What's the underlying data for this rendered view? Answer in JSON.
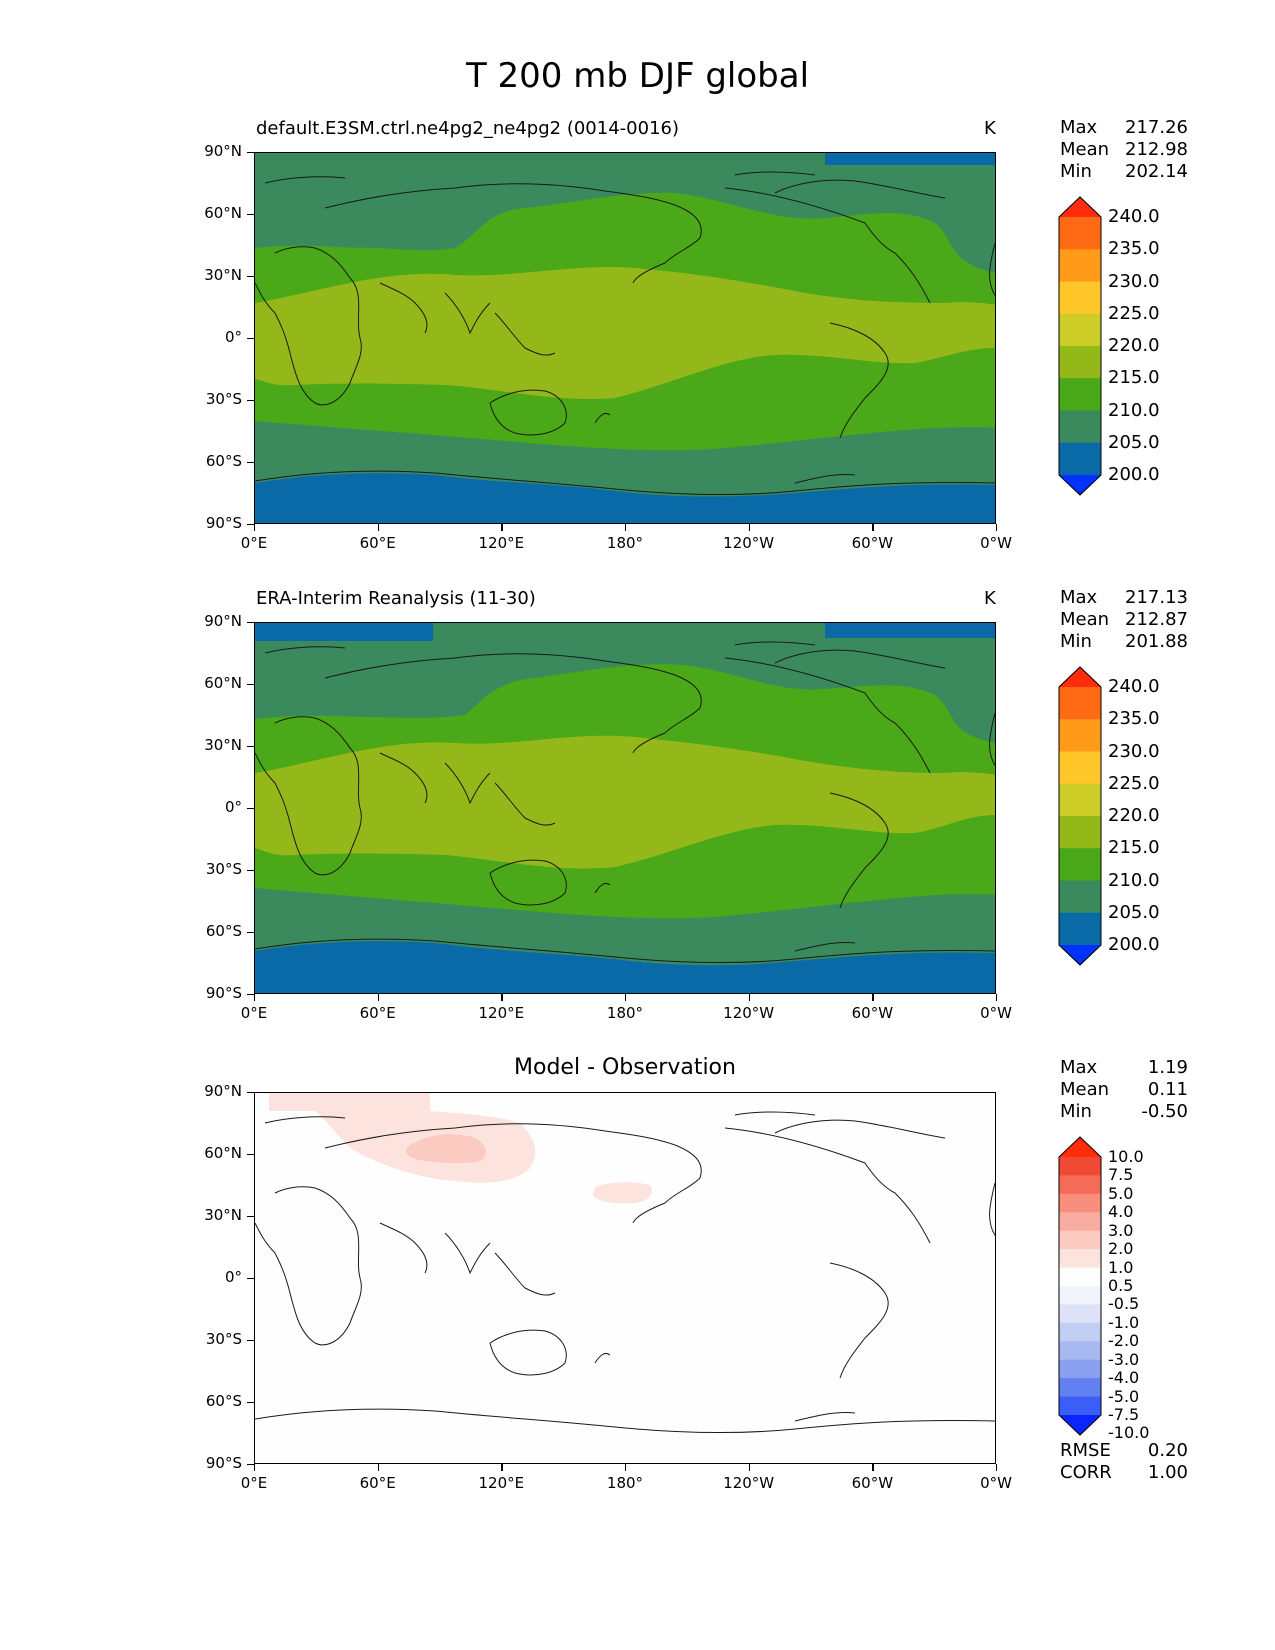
{
  "figure": {
    "title": "T 200 mb DJF global"
  },
  "colors": {
    "abs_levels": [
      "#0033ff",
      "#0a6aa8",
      "#3a8a5e",
      "#4aa819",
      "#94b819",
      "#cccd27",
      "#ffc729",
      "#ff9b18",
      "#ff6a14",
      "#ff2d0c"
    ],
    "diff_levels": [
      "#0a25ff",
      "#3b5ef6",
      "#6181f2",
      "#8aa0ef",
      "#a8b8f0",
      "#c3cef3",
      "#dce3f8",
      "#f1f4fb",
      "#fefefe",
      "#fde3de",
      "#fbcac1",
      "#f9ada0",
      "#f78e7e",
      "#f46c58",
      "#f14a34",
      "#ff2d0c"
    ]
  },
  "panels": [
    {
      "id": "test",
      "title_left": "default.E3SM.ctrl.ne4pg2_ne4pg2 (0014-0016)",
      "title_right": "K",
      "stats": {
        "max_label": "Max",
        "max": "217.26",
        "mean_label": "Mean",
        "mean": "212.98",
        "min_label": "Min",
        "min": "202.14"
      }
    },
    {
      "id": "ref",
      "title_left": "ERA-Interim Reanalysis (11-30)",
      "title_right": "K",
      "stats": {
        "max_label": "Max",
        "max": "217.13",
        "mean_label": "Mean",
        "mean": "212.87",
        "min_label": "Min",
        "min": "201.88"
      }
    },
    {
      "id": "diff",
      "title_center": "Model - Observation",
      "stats": {
        "max_label": "Max",
        "max": "1.19",
        "mean_label": "Mean",
        "mean": "0.11",
        "min_label": "Min",
        "min": "-0.50"
      },
      "metrics": {
        "rmse_label": "RMSE",
        "rmse": "0.20",
        "corr_label": "CORR",
        "corr": "1.00"
      }
    }
  ],
  "lat_ticks": [
    "90°N",
    "60°N",
    "30°N",
    "0°",
    "30°S",
    "60°S",
    "90°S"
  ],
  "lon_ticks": [
    "0°E",
    "60°E",
    "120°E",
    "180°",
    "120°W",
    "60°W",
    "0°W"
  ],
  "abs_colorbar_labels": [
    "240.0",
    "235.0",
    "230.0",
    "225.0",
    "220.0",
    "215.0",
    "210.0",
    "205.0",
    "200.0"
  ],
  "diff_colorbar_labels": [
    "10.0",
    "7.5",
    "5.0",
    "4.0",
    "3.0",
    "2.0",
    "1.0",
    "0.5",
    "-0.5",
    "-1.0",
    "-2.0",
    "-3.0",
    "-4.0",
    "-5.0",
    "-7.5",
    "-10.0"
  ],
  "chart_data": [
    {
      "type": "heatmap",
      "title": "default.E3SM.ctrl.ne4pg2_ne4pg2 (0014-0016)",
      "units": "K",
      "projection": "PlateCarree, central longitude 180",
      "xlim": [
        0,
        360
      ],
      "ylim": [
        -90,
        90
      ],
      "levels": [
        200,
        205,
        210,
        215,
        220,
        225,
        230,
        235,
        240
      ],
      "max": 217.26,
      "mean": 212.98,
      "min": 202.14
    },
    {
      "type": "heatmap",
      "title": "ERA-Interim Reanalysis (11-30)",
      "units": "K",
      "projection": "PlateCarree, central longitude 180",
      "xlim": [
        0,
        360
      ],
      "ylim": [
        -90,
        90
      ],
      "levels": [
        200,
        205,
        210,
        215,
        220,
        225,
        230,
        235,
        240
      ],
      "max": 217.13,
      "mean": 212.87,
      "min": 201.88
    },
    {
      "type": "heatmap",
      "title": "Model - Observation",
      "projection": "PlateCarree, central longitude 180",
      "xlim": [
        0,
        360
      ],
      "ylim": [
        -90,
        90
      ],
      "levels": [
        -10,
        -7.5,
        -5,
        -4,
        -3,
        -2,
        -1,
        -0.5,
        0.5,
        1,
        2,
        3,
        4,
        5,
        7.5,
        10
      ],
      "max": 1.19,
      "mean": 0.11,
      "min": -0.5,
      "rmse": 0.2,
      "corr": 1.0
    }
  ]
}
